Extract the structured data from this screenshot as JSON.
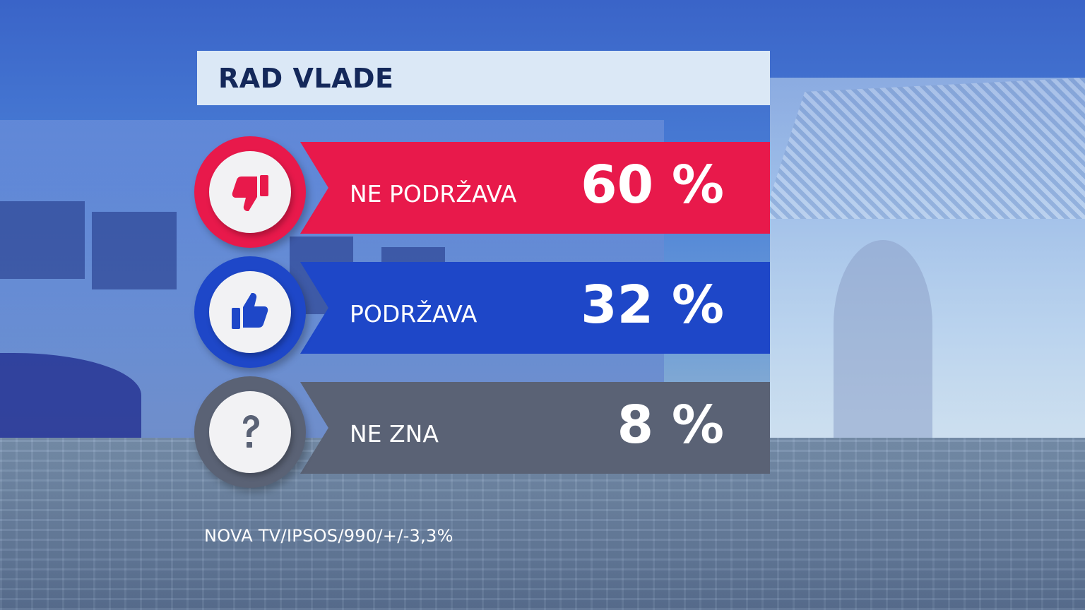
{
  "title": "RAD VLADE",
  "source": "NOVA TV/IPSOS/990/+/-3,3%",
  "rows": [
    {
      "label": "NE PODRŽAVA",
      "pct": "60 %",
      "icon": "thumbs-down-icon",
      "color": "#e8194b",
      "ring": "#e8194b",
      "icon_color": "#e8194b"
    },
    {
      "label": "PODRŽAVA",
      "pct": "32 %",
      "icon": "thumbs-up-icon",
      "color": "#1e47c8",
      "ring": "#1e47c8",
      "icon_color": "#1e47c8"
    },
    {
      "label": "NE ZNA",
      "pct": "8 %",
      "icon": "question-mark-icon",
      "color": "#5a6275",
      "ring": "#5a6275",
      "icon_color": "#5a6275"
    }
  ],
  "chart_data": {
    "type": "bar",
    "title": "RAD VLADE",
    "categories": [
      "NE PODRŽAVA",
      "PODRŽAVA",
      "NE ZNA"
    ],
    "values": [
      60,
      32,
      8
    ],
    "unit": "%"
  }
}
